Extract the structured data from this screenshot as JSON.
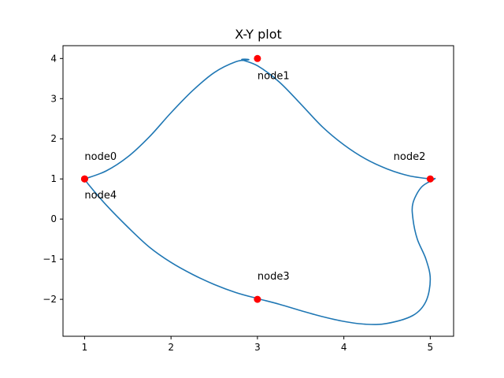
{
  "chart_data": {
    "type": "line",
    "title": "X-Y plot",
    "xlabel": "",
    "ylabel": "",
    "xlim": [
      0.75,
      5.27
    ],
    "ylim": [
      -2.92,
      4.32
    ],
    "xticks": [
      1,
      2,
      3,
      4,
      5
    ],
    "yticks": [
      -2,
      -1,
      0,
      1,
      2,
      3,
      4
    ],
    "grid": false,
    "colors": {
      "curve": "#1f77b4",
      "nodes": "#ff0000"
    },
    "nodes": [
      {
        "label": "node0",
        "x": 1,
        "y": 1
      },
      {
        "label": "node1",
        "x": 3,
        "y": 4
      },
      {
        "label": "node2",
        "x": 5,
        "y": 1
      },
      {
        "label": "node3",
        "x": 3,
        "y": -2
      },
      {
        "label": "node4",
        "x": 1,
        "y": 1
      }
    ],
    "curve": {
      "x": [
        1.0,
        1.25,
        1.5,
        1.75,
        2.0,
        2.25,
        2.5,
        2.75,
        2.9,
        2.82,
        3.0,
        3.25,
        3.5,
        3.75,
        4.0,
        4.25,
        4.5,
        4.75,
        5.0,
        5.05,
        4.9,
        4.8,
        4.8,
        4.85,
        4.95,
        5.0,
        4.95,
        4.8,
        4.5,
        4.25,
        4.0,
        3.75,
        3.5,
        3.25,
        3.0,
        2.75,
        2.5,
        2.25,
        2.0,
        1.75,
        1.5,
        1.25,
        1.05,
        1.0
      ],
      "y": [
        1.0,
        1.2,
        1.55,
        2.05,
        2.65,
        3.2,
        3.65,
        3.92,
        3.97,
        3.97,
        3.82,
        3.42,
        2.87,
        2.3,
        1.85,
        1.5,
        1.25,
        1.08,
        1.0,
        1.0,
        0.8,
        0.4,
        0.0,
        -0.5,
        -1.0,
        -1.5,
        -2.05,
        -2.4,
        -2.6,
        -2.62,
        -2.55,
        -2.43,
        -2.28,
        -2.12,
        -1.98,
        -1.83,
        -1.63,
        -1.38,
        -1.08,
        -0.7,
        -0.2,
        0.35,
        0.85,
        1.0
      ]
    }
  }
}
